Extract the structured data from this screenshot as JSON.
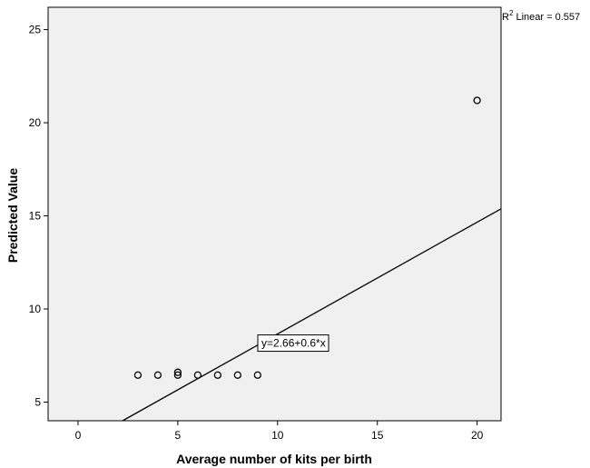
{
  "chart_data": {
    "type": "scatter",
    "xlabel": "Average number of kits per birth",
    "ylabel": "Predicted Value",
    "xlim": [
      -1.5,
      21.2
    ],
    "ylim": [
      4,
      26.2
    ],
    "xticks": [
      0,
      5,
      10,
      15,
      20
    ],
    "yticks": [
      5,
      10,
      15,
      20,
      25
    ],
    "points": [
      {
        "x": 3,
        "y": 6.45
      },
      {
        "x": 4,
        "y": 6.45
      },
      {
        "x": 5,
        "y": 6.45
      },
      {
        "x": 5,
        "y": 6.6
      },
      {
        "x": 6,
        "y": 6.45
      },
      {
        "x": 7,
        "y": 6.45
      },
      {
        "x": 8,
        "y": 6.45
      },
      {
        "x": 9,
        "y": 6.45
      },
      {
        "x": 20,
        "y": 21.2
      }
    ],
    "fit_line": {
      "intercept": 2.66,
      "slope": 0.6,
      "equation": "y=2.66+0.6*x"
    },
    "r2_label": "R",
    "r2_sup": "2",
    "r2_suffix": " Linear = 0.557",
    "background": "#f0f0f0",
    "grid": false
  }
}
